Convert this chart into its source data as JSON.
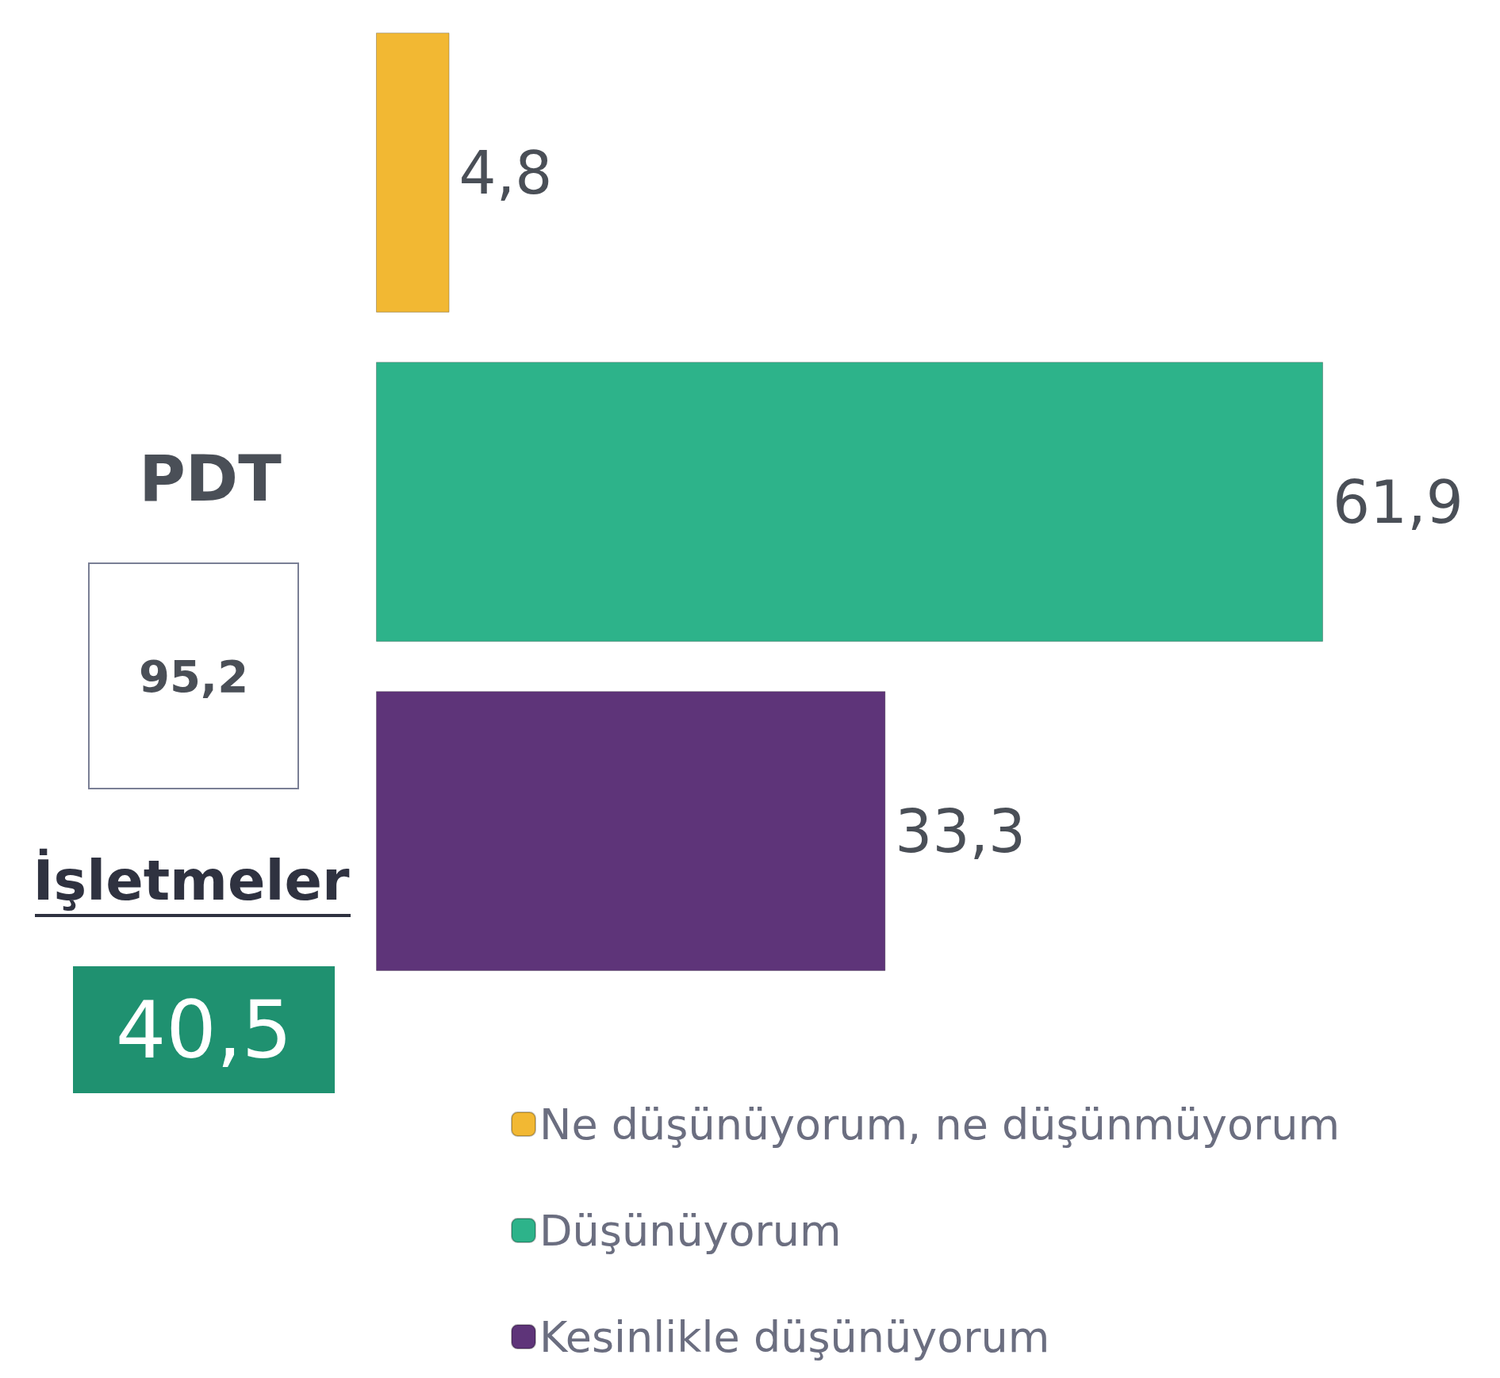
{
  "chart_data": {
    "type": "bar",
    "orientation": "horizontal",
    "stacked": true,
    "categories": [
      null,
      null,
      null
    ],
    "series": [
      {
        "name": "Ne düşünüyorum, ne düşünmüyorum",
        "color": "#f2b833",
        "values": [
          4.8,
          null,
          null
        ],
        "value_labels": [
          "4,8",
          null,
          null
        ]
      },
      {
        "name": "Düşünüyorum",
        "color": "#2db38a",
        "values": [
          null,
          61.9,
          null
        ],
        "value_labels": [
          null,
          "61,9",
          null
        ]
      },
      {
        "name": "Kesinlikle düşünüyorum",
        "color": "#5e3479",
        "values": [
          null,
          null,
          33.3
        ],
        "value_labels": [
          null,
          null,
          "33,3"
        ]
      }
    ],
    "legend": "bottom right",
    "grid": false,
    "annotations": [
      "PDT",
      "95,2",
      "İşletmeler",
      "40,5"
    ]
  }
}
